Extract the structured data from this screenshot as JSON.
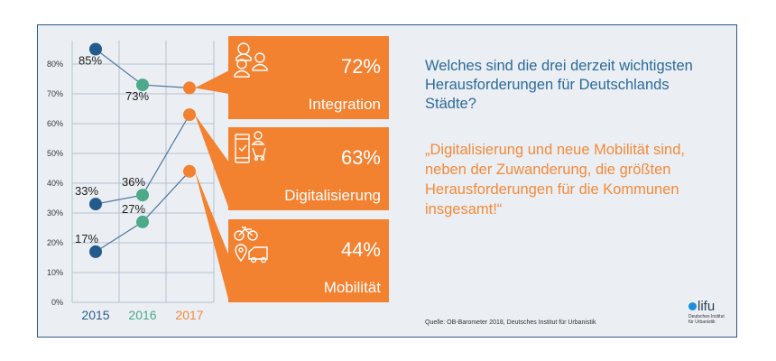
{
  "chart_data": {
    "type": "line",
    "title": "Welches sind die drei derzeit wichtigsten Herausforderungen für Deutschlands Städte?",
    "x": [
      "2015",
      "2016",
      "2017"
    ],
    "x_colors": [
      "#2b5d8c",
      "#4daa88",
      "#f28b3c"
    ],
    "ylim": [
      0,
      90
    ],
    "yticks": [
      "0%",
      "10%",
      "20%",
      "30%",
      "40%",
      "50%",
      "60%",
      "70%",
      "80%"
    ],
    "ytick_values": [
      0,
      10,
      20,
      30,
      40,
      50,
      60,
      70,
      80
    ],
    "grid": true,
    "series": [
      {
        "name": "Integration",
        "values": [
          85,
          73,
          72
        ],
        "labels": [
          "85%",
          "73%",
          "72%"
        ]
      },
      {
        "name": "Digitalisierung",
        "values": [
          33,
          36,
          63
        ],
        "labels": [
          "33%",
          "36%",
          "63%"
        ]
      },
      {
        "name": "Mobilität",
        "values": [
          17,
          27,
          44
        ],
        "labels": [
          "17%",
          "27%",
          "44%"
        ]
      }
    ]
  },
  "callouts": [
    {
      "name": "Integration",
      "pct": "72%",
      "icon": "people-icon"
    },
    {
      "name": "Digitalisierung",
      "pct": "63%",
      "icon": "smartphone-shopping-icon"
    },
    {
      "name": "Mobilität",
      "pct": "44%",
      "icon": "bike-car-location-icon"
    }
  ],
  "text": {
    "question": "Welches sind die drei derzeit wichtigsten Herausforderungen für Deutschlands Städte?",
    "quote": "„Digitalisierung und neue Mobilität sind, neben der Zuwanderung, die größten Herausforderungen für die Kommunen insgesamt!“",
    "source": "Quelle: OB-Barometer 2018, Deutsches Institut für Urbanistik"
  },
  "logo": {
    "word": "lifu",
    "subtitle_line1": "Deutsches Institut",
    "subtitle_line2": "für Urbanistik"
  },
  "colors": {
    "orange": "#f28130",
    "blue": "#235b8c",
    "green": "#4daa88",
    "dot_orange": "#f28130",
    "line": "#4f77a0",
    "grid": "#b4c2d0",
    "frame_bg": "#ebeef2"
  }
}
